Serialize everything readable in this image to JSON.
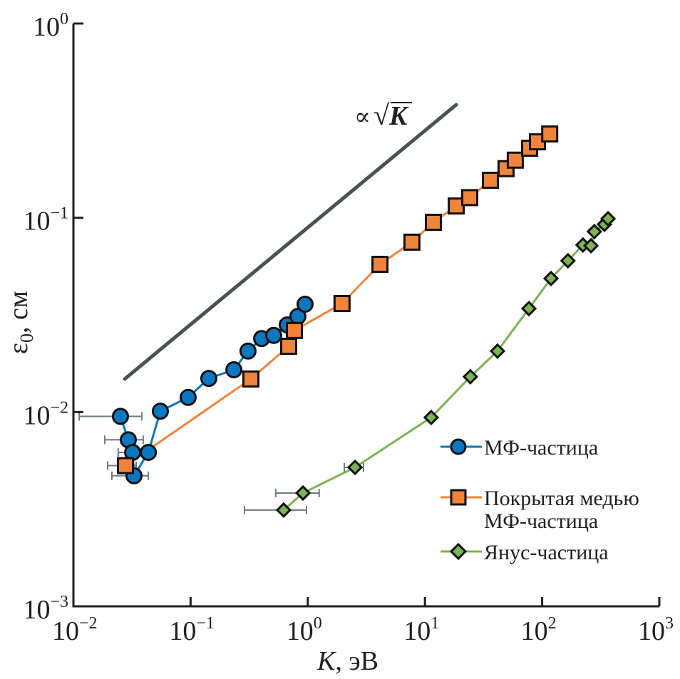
{
  "chart_data": {
    "type": "scatter",
    "title": "",
    "xlabel": "K, эВ",
    "xlabel_italic_part": "K",
    "xlabel_unit": ", эВ",
    "ylabel": "ε0, см",
    "ylabel_symbol": "ε",
    "ylabel_sub": "0",
    "ylabel_unit": ", см",
    "xscale": "log",
    "yscale": "log",
    "xlim": [
      0.01,
      1000
    ],
    "ylim": [
      0.001,
      1
    ],
    "grid": false,
    "x_ticks": [
      {
        "value": 0.01,
        "base": "10",
        "exp": "−2"
      },
      {
        "value": 0.1,
        "base": "10",
        "exp": "−1"
      },
      {
        "value": 1,
        "base": "10",
        "exp": "0"
      },
      {
        "value": 10,
        "base": "10",
        "exp": "1"
      },
      {
        "value": 100,
        "base": "10",
        "exp": "2"
      },
      {
        "value": 1000,
        "base": "10",
        "exp": "3"
      }
    ],
    "y_ticks": [
      {
        "value": 0.001,
        "base": "10",
        "exp": "−3"
      },
      {
        "value": 0.01,
        "base": "10",
        "exp": "−2"
      },
      {
        "value": 0.1,
        "base": "10",
        "exp": "−1"
      },
      {
        "value": 1,
        "base": "10",
        "exp": "0"
      }
    ],
    "legend_position": "bottom-right",
    "series": [
      {
        "name": "МФ-частица",
        "marker": "circle",
        "color": "#0a77c0",
        "points": [
          {
            "x": 0.0252,
            "y": 0.0095,
            "xerr": [
              0.0112,
              0.0384
            ]
          },
          {
            "x": 0.0294,
            "y": 0.0072,
            "xerr": [
              0.0185,
              0.0394
            ]
          },
          {
            "x": 0.032,
            "y": 0.0062,
            "xerr": [
              0.0241,
              0.048
            ]
          },
          {
            "x": 0.0329,
            "y": 0.0047,
            "xerr": [
              0.0213,
              0.0436
            ]
          },
          {
            "x": 0.0436,
            "y": 0.0062
          },
          {
            "x": 0.0552,
            "y": 0.0101
          },
          {
            "x": 0.0953,
            "y": 0.0119
          },
          {
            "x": 0.143,
            "y": 0.0149
          },
          {
            "x": 0.234,
            "y": 0.0165
          },
          {
            "x": 0.309,
            "y": 0.0206
          },
          {
            "x": 0.404,
            "y": 0.0239
          },
          {
            "x": 0.512,
            "y": 0.0248
          },
          {
            "x": 0.668,
            "y": 0.0281
          },
          {
            "x": 0.824,
            "y": 0.0311
          },
          {
            "x": 0.948,
            "y": 0.0359
          }
        ]
      },
      {
        "name": "Покрытая медью МФ-частица",
        "legend_lines": [
          "Покрытая медью",
          "МФ-частица"
        ],
        "marker": "square",
        "color": "#f0843a",
        "points": [
          {
            "x": 0.0278,
            "y": 0.0053,
            "xerr": [
              0.0196,
              0.0343
            ]
          },
          {
            "x": 0.327,
            "y": 0.0148
          },
          {
            "x": 0.687,
            "y": 0.0218
          },
          {
            "x": 0.769,
            "y": 0.0263
          },
          {
            "x": 1.96,
            "y": 0.0362
          },
          {
            "x": 4.13,
            "y": 0.0576
          },
          {
            "x": 7.74,
            "y": 0.0749
          },
          {
            "x": 11.8,
            "y": 0.0948
          },
          {
            "x": 18.5,
            "y": 0.115
          },
          {
            "x": 24.1,
            "y": 0.127
          },
          {
            "x": 36.2,
            "y": 0.156
          },
          {
            "x": 49.2,
            "y": 0.179
          },
          {
            "x": 59.0,
            "y": 0.198
          },
          {
            "x": 78.2,
            "y": 0.228
          },
          {
            "x": 91.2,
            "y": 0.246
          },
          {
            "x": 116,
            "y": 0.27
          }
        ]
      },
      {
        "name": "Янус-частица",
        "marker": "diamond",
        "color": "#7ab552",
        "points": [
          {
            "x": 0.622,
            "y": 0.00313,
            "xerr": [
              0.288,
              0.975
            ]
          },
          {
            "x": 0.91,
            "y": 0.00383,
            "xerr": [
              0.533,
              1.25
            ]
          },
          {
            "x": 2.53,
            "y": 0.00519,
            "xerr": [
              2.05,
              2.99
            ]
          },
          {
            "x": 11.3,
            "y": 0.00938
          },
          {
            "x": 24.4,
            "y": 0.0152
          },
          {
            "x": 41.6,
            "y": 0.0206
          },
          {
            "x": 77.1,
            "y": 0.0341
          },
          {
            "x": 119,
            "y": 0.0487
          },
          {
            "x": 166,
            "y": 0.0601
          },
          {
            "x": 223,
            "y": 0.0724
          },
          {
            "x": 261,
            "y": 0.0718
          },
          {
            "x": 279,
            "y": 0.0849
          },
          {
            "x": 340,
            "y": 0.0925
          },
          {
            "x": 365,
            "y": 0.0989
          }
        ]
      }
    ],
    "reference_line": {
      "label_prefix": "∝",
      "label_root": "√",
      "label_var": "K",
      "color": "#4a5256",
      "from": {
        "x": 0.0274,
        "y": 0.0148
      },
      "to": {
        "x": 18.5,
        "y": 0.382
      }
    },
    "errorbar_color": "#6d7a80"
  }
}
